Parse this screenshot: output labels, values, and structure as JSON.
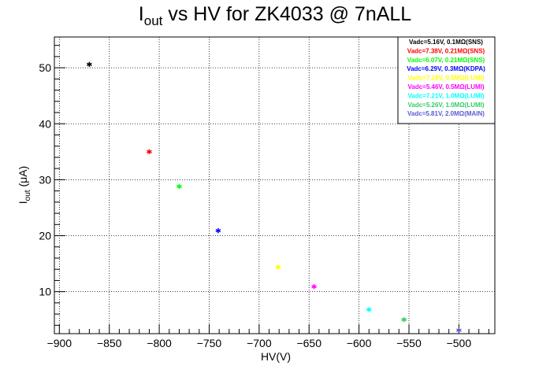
{
  "chart_data": {
    "type": "scatter",
    "title": "I_out vs HV for ZK4033 @ 7nALL",
    "title_parts": {
      "main": "I",
      "sub": "out",
      "rest": " vs HV for ZK4033 @ 7nALL"
    },
    "xlabel": "HV(V)",
    "ylabel_parts": {
      "main": "I",
      "sub": "out",
      "rest": " (μA)"
    },
    "xlim": [
      -905,
      -464
    ],
    "ylim": [
      2.5,
      55.5
    ],
    "x_ticks": [
      -900,
      -850,
      -800,
      -750,
      -700,
      -650,
      -600,
      -550,
      -500
    ],
    "x_tick_labels": [
      "−900",
      "−850",
      "−800",
      "−750",
      "−700",
      "−650",
      "−600",
      "−550",
      "−500"
    ],
    "y_ticks": [
      10,
      20,
      30,
      40,
      50
    ],
    "y_tick_labels": [
      "10",
      "20",
      "30",
      "40",
      "50"
    ],
    "grid": true,
    "legend_position": "top-right",
    "series": [
      {
        "name": "Vadc=5.16V, 0.1MΩ(SNS)",
        "color": "#000000",
        "x": [
          -870
        ],
        "y": [
          50.6
        ]
      },
      {
        "name": "Vadc=7.38V, 0.21MΩ(SNS)",
        "color": "#ff0000",
        "x": [
          -810
        ],
        "y": [
          35.0
        ]
      },
      {
        "name": "Vadc=6.07V, 0.21MΩ(SNS)",
        "color": "#00ff00",
        "x": [
          -780
        ],
        "y": [
          28.8
        ]
      },
      {
        "name": "Vadc=6.29V, 0.3MΩ(KDPA)",
        "color": "#0000ff",
        "x": [
          -741
        ],
        "y": [
          20.9
        ]
      },
      {
        "name": "Vadc=7.18V, 0.5MΩ(LUMI)",
        "color": "#ffff00",
        "x": [
          -681
        ],
        "y": [
          14.4
        ]
      },
      {
        "name": "Vadc=5.46V, 0.5MΩ(LUMI)",
        "color": "#ff00ff",
        "x": [
          -645
        ],
        "y": [
          10.9
        ]
      },
      {
        "name": "Vadc=7.21V, 1.0MΩ(LUMI)",
        "color": "#00ffff",
        "x": [
          -590
        ],
        "y": [
          6.8
        ]
      },
      {
        "name": "Vadc=5.26V, 1.0MΩ(LUMI)",
        "color": "#33cc66",
        "x": [
          -555
        ],
        "y": [
          5.0
        ]
      },
      {
        "name": "Vadc=5.81V, 2.0MΩ(MAIN)",
        "color": "#5a5ad6",
        "x": [
          -500
        ],
        "y": [
          3.1
        ]
      }
    ]
  }
}
